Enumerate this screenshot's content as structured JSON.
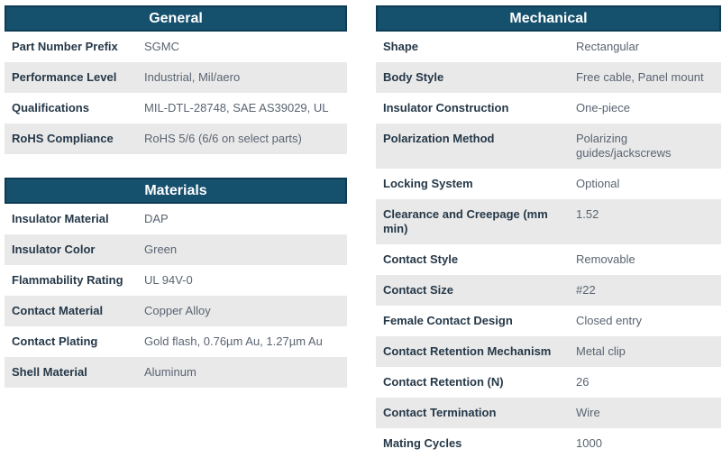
{
  "colors": {
    "header_bg": "#15506D",
    "header_border": "#0E3C54",
    "header_text": "#FFFFFF",
    "label_text": "#253848",
    "value_text": "#5A6472",
    "row_bg": "#FFFFFF",
    "row_alt_bg": "#E9E9E9"
  },
  "tables": [
    {
      "id": "general",
      "title": "General",
      "rows": [
        {
          "label": "Part Number Prefix",
          "value": "SGMC"
        },
        {
          "label": "Performance Level",
          "value": "Industrial, Mil/aero"
        },
        {
          "label": "Qualifications",
          "value": "MIL-DTL-28748, SAE AS39029, UL"
        },
        {
          "label": "RoHS Compliance",
          "value": "RoHS 5/6 (6/6 on select parts)"
        }
      ]
    },
    {
      "id": "materials",
      "title": "Materials",
      "rows": [
        {
          "label": "Insulator Material",
          "value": "DAP"
        },
        {
          "label": "Insulator Color",
          "value": "Green"
        },
        {
          "label": "Flammability Rating",
          "value": "UL 94V-0"
        },
        {
          "label": "Contact Material",
          "value": "Copper Alloy"
        },
        {
          "label": "Contact Plating",
          "value": "Gold flash, 0.76µm Au, 1.27µm Au"
        },
        {
          "label": "Shell Material",
          "value": "Aluminum"
        }
      ]
    },
    {
      "id": "mechanical",
      "title": "Mechanical",
      "rows": [
        {
          "label": "Shape",
          "value": "Rectangular"
        },
        {
          "label": "Body Style",
          "value": "Free cable, Panel mount"
        },
        {
          "label": "Insulator Construction",
          "value": "One-piece"
        },
        {
          "label": "Polarization Method",
          "value": "Polarizing guides/jackscrews"
        },
        {
          "label": "Locking System",
          "value": "Optional"
        },
        {
          "label": "Clearance and Creepage (mm min)",
          "value": "1.52"
        },
        {
          "label": "Contact Style",
          "value": "Removable"
        },
        {
          "label": "Contact Size",
          "value": "#22"
        },
        {
          "label": "Female Contact Design",
          "value": "Closed entry"
        },
        {
          "label": "Contact Retention Mechanism",
          "value": "Metal clip"
        },
        {
          "label": "Contact Retention (N)",
          "value": "26"
        },
        {
          "label": "Contact Termination",
          "value": "Wire"
        },
        {
          "label": "Mating Cycles",
          "value": "1000"
        }
      ]
    }
  ]
}
